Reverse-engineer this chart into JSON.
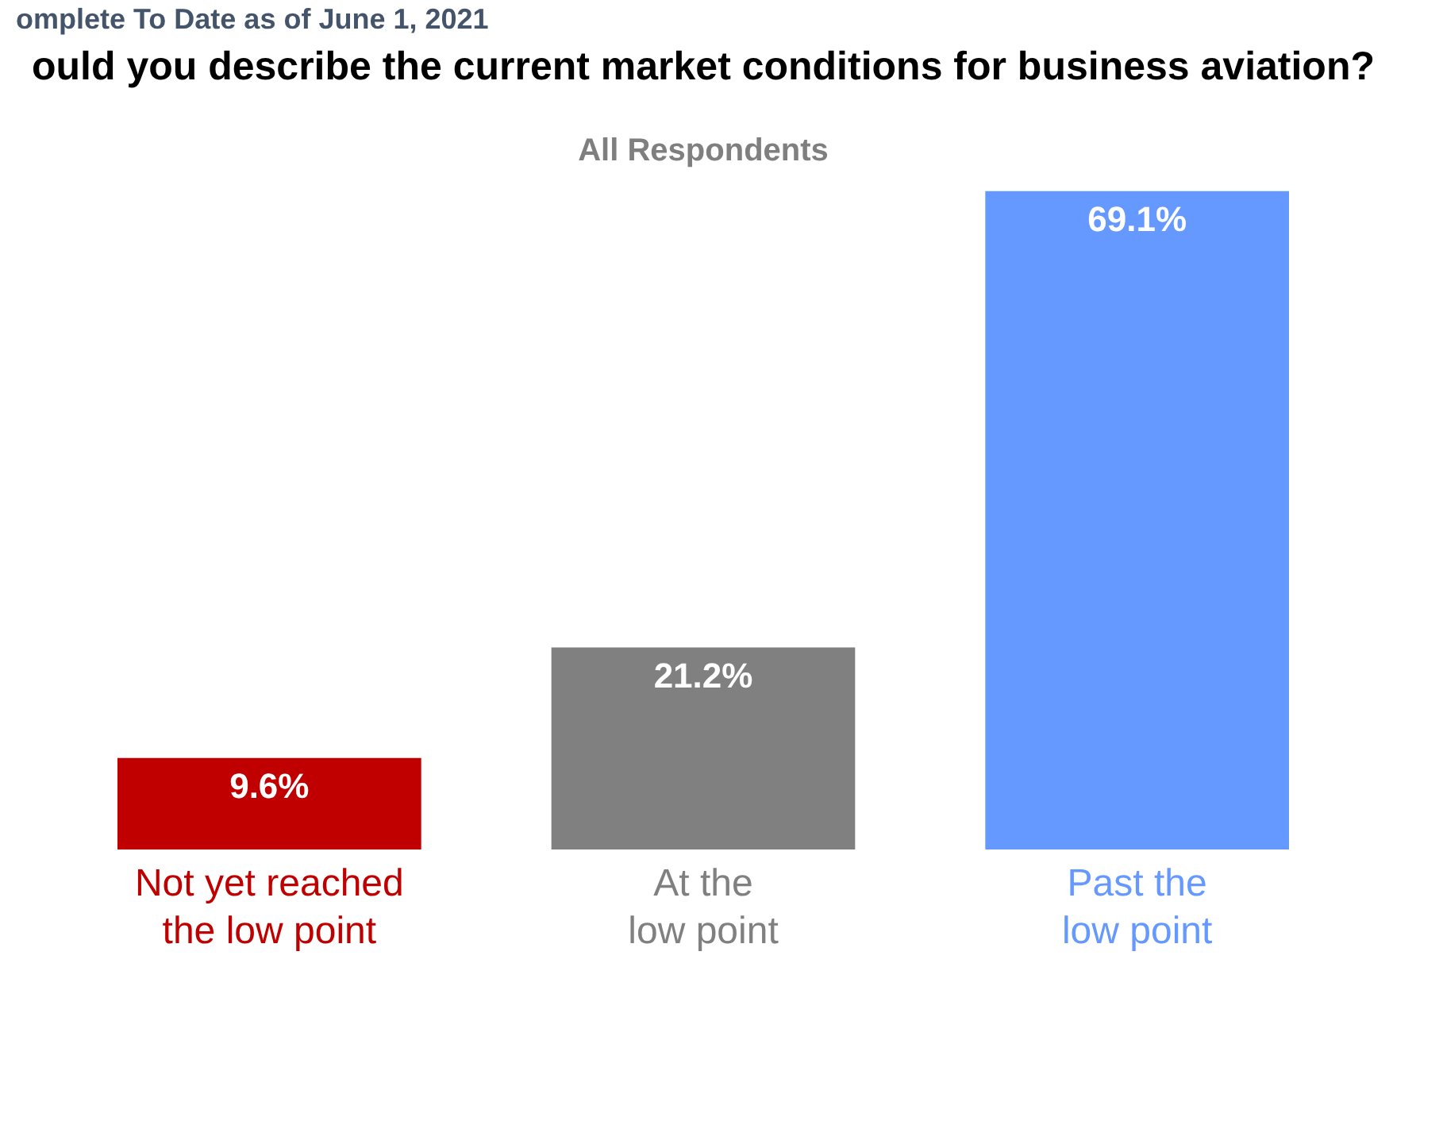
{
  "chart_data": {
    "type": "bar",
    "title": "ould you describe the current market conditions for business aviation?",
    "subtitle": "All Respondents",
    "annotations": [
      "omplete To Date as of June 1, 2021"
    ],
    "categories": [
      "Not yet reached the low point",
      "At the low point",
      "Past the low point"
    ],
    "values": [
      9.6,
      21.2,
      69.1
    ],
    "colors": [
      "#c00000",
      "#808080",
      "#6699ff"
    ],
    "value_labels": [
      "9.6%",
      "21.2%",
      "69.1%"
    ]
  }
}
